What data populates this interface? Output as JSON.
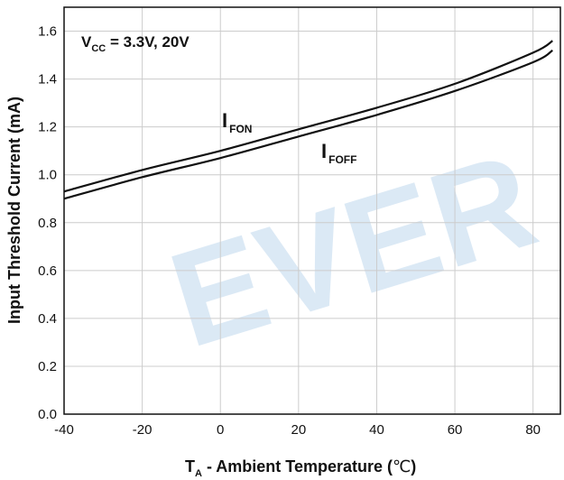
{
  "chart_data": {
    "type": "line",
    "title": "",
    "xlabel": {
      "main": "T",
      "sub": "A",
      "rest": " - Ambient Temperature (",
      "unit": "℃",
      "close": ")"
    },
    "ylabel": "Input Threshold Current (mA)",
    "xlim": [
      -40,
      87
    ],
    "ylim": [
      0.0,
      1.7
    ],
    "xticks": [
      "-40",
      "-20",
      "0",
      "20",
      "40",
      "60",
      "80"
    ],
    "yticks": [
      "0.0",
      "0.2",
      "0.4",
      "0.6",
      "0.8",
      "1.0",
      "1.2",
      "1.4",
      "1.6"
    ],
    "grid": true,
    "condition": {
      "main": "V",
      "sub": "CC",
      "rest": " = 3.3V, 20V"
    },
    "series": [
      {
        "name": "FON",
        "label_main": "I",
        "label_sub": "FON",
        "x": [
          -40,
          -20,
          0,
          20,
          40,
          60,
          80,
          85
        ],
        "y": [
          0.93,
          1.02,
          1.1,
          1.19,
          1.28,
          1.38,
          1.51,
          1.56
        ]
      },
      {
        "name": "FOFF",
        "label_main": "I",
        "label_sub": "FOFF",
        "x": [
          -40,
          -20,
          0,
          20,
          40,
          60,
          80,
          85
        ],
        "y": [
          0.9,
          0.99,
          1.07,
          1.16,
          1.25,
          1.35,
          1.47,
          1.52
        ]
      }
    ],
    "watermark": "EVER",
    "colors": {
      "line": "#111111",
      "grid": "#cccccc",
      "watermark": "#dbe9f5"
    }
  }
}
